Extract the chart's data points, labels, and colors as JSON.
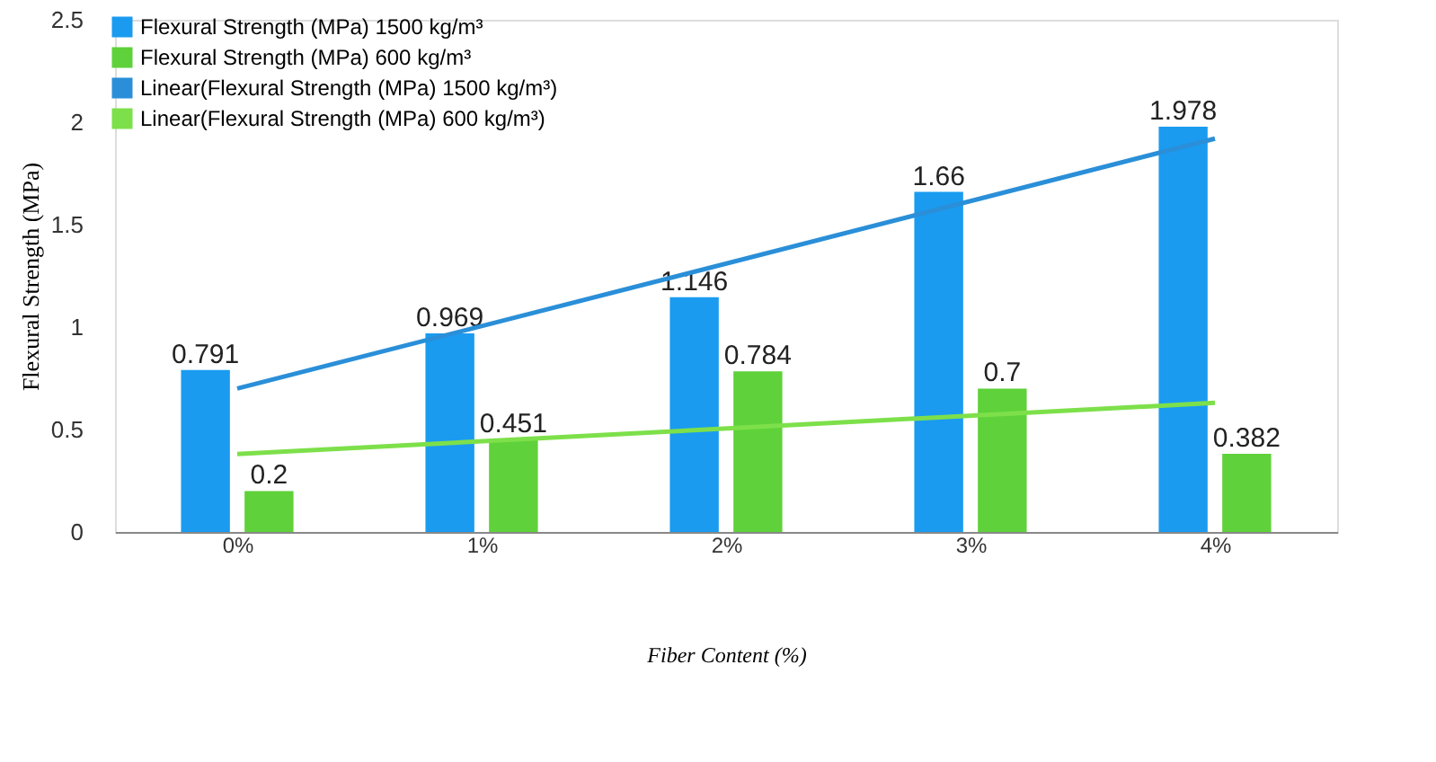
{
  "chart_data": {
    "type": "bar",
    "xlabel": "Fiber Content (%)",
    "ylabel": "Flexural Strength (MPa)",
    "categories": [
      "0%",
      "1%",
      "2%",
      "3%",
      "4%"
    ],
    "series": [
      {
        "name": "Flexural Strength (MPa) 1500 kg/m³",
        "color": "#1a9bf0",
        "values": [
          0.791,
          0.969,
          1.146,
          1.66,
          1.978
        ],
        "value_labels": [
          "0.791",
          "0.969",
          "1.146",
          "1.66",
          "1.978"
        ]
      },
      {
        "name": "Flexural Strength (MPa) 600 kg/m³",
        "color": "#5fd13a",
        "values": [
          0.2,
          0.451,
          0.784,
          0.7,
          0.382
        ],
        "value_labels": [
          "0.2",
          "0.451",
          "0.784",
          "0.7",
          "0.382"
        ]
      },
      {
        "name": "Linear(Flexural Strength (MPa) 1500 kg/m³)",
        "type": "line",
        "color": "#2a8fd8",
        "x": [
          "0%",
          "4%"
        ],
        "values": [
          0.7,
          1.92
        ]
      },
      {
        "name": "Linear(Flexural Strength (MPa) 600 kg/m³)",
        "type": "line",
        "color": "#7de04a",
        "x": [
          "0%",
          "4%"
        ],
        "values": [
          0.38,
          0.63
        ]
      }
    ],
    "ylim": [
      0,
      2.5
    ],
    "yticks": [
      0,
      0.5,
      1,
      1.5,
      2,
      2.5
    ],
    "legend": "top left",
    "grid": false
  }
}
